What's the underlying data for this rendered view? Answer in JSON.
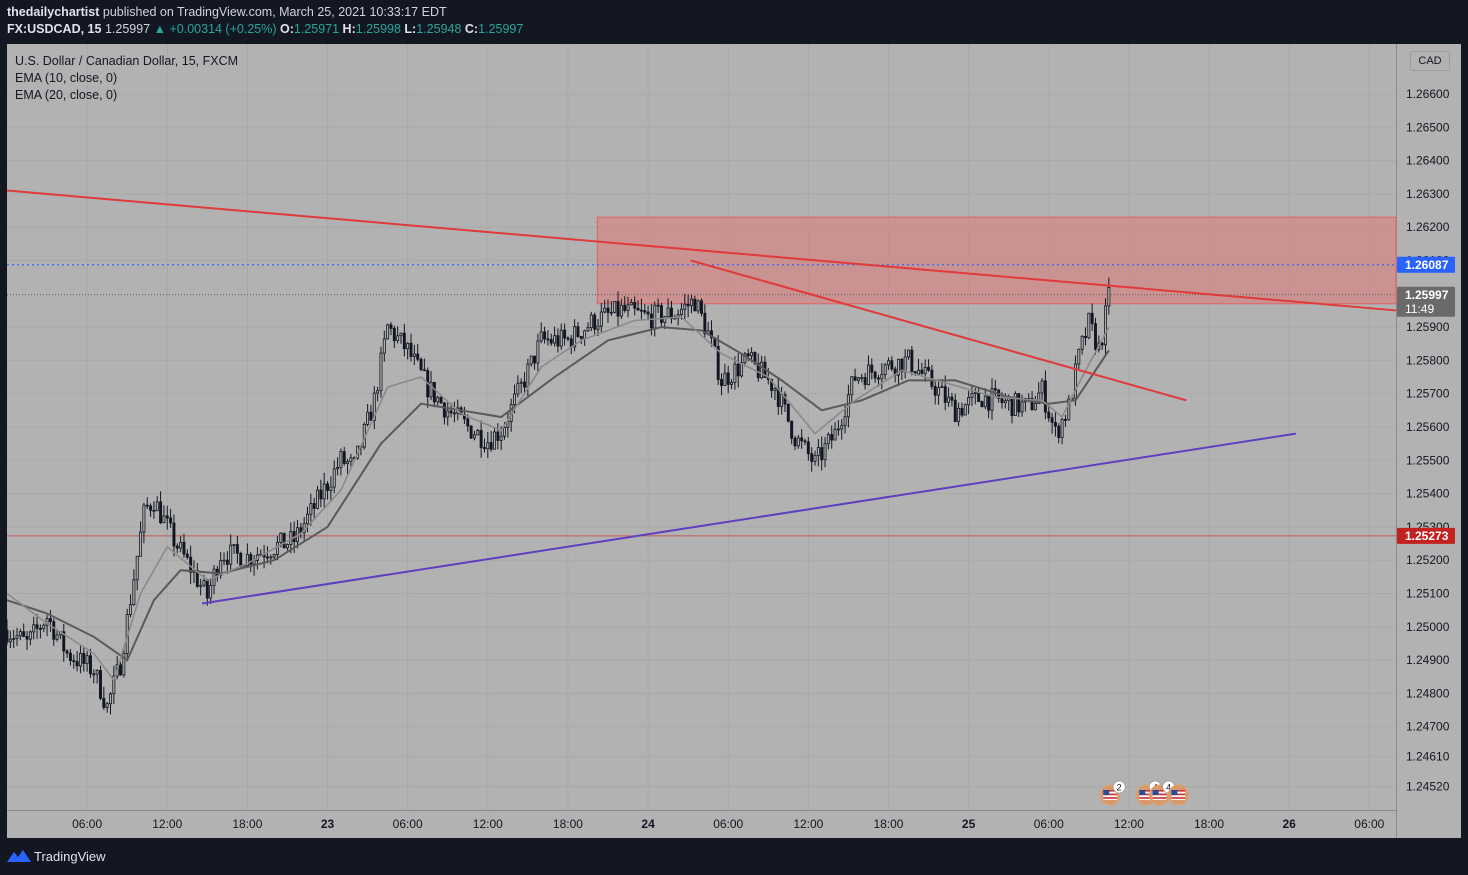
{
  "header": {
    "author": "thedailychartist",
    "published": "published on TradingView.com, March 25, 2021 10:33:17 EDT",
    "symbol_interval": "FX:USDCAD, 15",
    "last_price": "1.25997",
    "change": "▲ +0.00314 (+0.25%)",
    "open_label": "O:",
    "open": "1.25971",
    "high_label": "H:",
    "high": "1.25998",
    "low_label": "L:",
    "low": "1.25948",
    "close_label": "C:",
    "close": "1.25997"
  },
  "legend": {
    "title": "U.S. Dollar / Canadian Dollar, 15, FXCM",
    "ema10": "EMA (10, close, 0)",
    "ema20": "EMA (20, close, 0)"
  },
  "currency_button": "CAD",
  "footer": {
    "brand": "TradingView"
  },
  "colors": {
    "background": "#131722",
    "pane": "#b2b2b2",
    "candle": "#131722",
    "resistance_line": "#e03a3a",
    "support_line": "#5e3fbf",
    "zone": "#e07878",
    "ema10": "#8a8a8a",
    "ema20": "#5a5a5a",
    "price_tag_blue": "#2962ff",
    "price_tag_red": "#c42121",
    "price_tag_gray": "#6a6a6a"
  },
  "chart_data": {
    "type": "candlestick",
    "symbol": "USDCAD",
    "interval": "15",
    "y_axis": {
      "range": [
        1.2445,
        1.2675
      ],
      "ticks": [
        "1.26600",
        "1.26500",
        "1.26400",
        "1.26300",
        "1.26200",
        "1.26100",
        "1.25900",
        "1.25800",
        "1.25700",
        "1.25600",
        "1.25500",
        "1.25400",
        "1.25300",
        "1.25200",
        "1.25100",
        "1.25000",
        "1.24900",
        "1.24800",
        "1.24700",
        "1.24610",
        "1.24520"
      ]
    },
    "x_axis": {
      "ticks": [
        "06:00",
        "12:00",
        "18:00",
        "23",
        "06:00",
        "12:00",
        "18:00",
        "24",
        "06:00",
        "12:00",
        "18:00",
        "25",
        "06:00",
        "12:00",
        "18:00",
        "26",
        "06:00"
      ],
      "tick_hours": [
        6,
        12,
        18,
        24,
        30,
        36,
        42,
        48,
        54,
        60,
        66,
        72,
        78,
        84,
        90,
        96,
        102
      ],
      "range_hours": [
        0,
        104
      ]
    },
    "price_path": [
      [
        0.0,
        1.2499
      ],
      [
        1.5,
        1.2495
      ],
      [
        3.0,
        1.2503
      ],
      [
        4.5,
        1.2492
      ],
      [
        6.5,
        1.2487
      ],
      [
        7.5,
        1.2476
      ],
      [
        8.5,
        1.2489
      ],
      [
        9.5,
        1.2515
      ],
      [
        10.3,
        1.2535
      ],
      [
        11.0,
        1.2538
      ],
      [
        12.5,
        1.2526
      ],
      [
        14.0,
        1.2516
      ],
      [
        15.0,
        1.2509
      ],
      [
        16.0,
        1.2522
      ],
      [
        18.0,
        1.2521
      ],
      [
        20.0,
        1.2524
      ],
      [
        21.5,
        1.2526
      ],
      [
        23.0,
        1.2536
      ],
      [
        25.0,
        1.255
      ],
      [
        26.0,
        1.2548
      ],
      [
        27.5,
        1.2568
      ],
      [
        28.5,
        1.259
      ],
      [
        30.0,
        1.2583
      ],
      [
        31.5,
        1.2572
      ],
      [
        33.0,
        1.2565
      ],
      [
        34.5,
        1.256
      ],
      [
        36.0,
        1.2556
      ],
      [
        37.0,
        1.2559
      ],
      [
        38.5,
        1.2572
      ],
      [
        40.0,
        1.2586
      ],
      [
        42.0,
        1.2586
      ],
      [
        44.0,
        1.2592
      ],
      [
        46.0,
        1.2595
      ],
      [
        48.0,
        1.2593
      ],
      [
        50.0,
        1.2594
      ],
      [
        51.5,
        1.2598
      ],
      [
        52.5,
        1.2588
      ],
      [
        53.5,
        1.2574
      ],
      [
        55.5,
        1.258
      ],
      [
        57.5,
        1.2572
      ],
      [
        59.0,
        1.2557
      ],
      [
        60.5,
        1.2549
      ],
      [
        62.0,
        1.2558
      ],
      [
        63.5,
        1.2575
      ],
      [
        65.5,
        1.2578
      ],
      [
        67.5,
        1.258
      ],
      [
        69.5,
        1.2572
      ],
      [
        71.0,
        1.2565
      ],
      [
        73.0,
        1.2569
      ],
      [
        75.0,
        1.2567
      ],
      [
        76.5,
        1.2566
      ],
      [
        77.5,
        1.2571
      ],
      [
        78.5,
        1.2558
      ],
      [
        79.5,
        1.2566
      ],
      [
        80.3,
        1.2582
      ],
      [
        81.0,
        1.2591
      ],
      [
        81.8,
        1.2583
      ],
      [
        82.5,
        1.2599
      ]
    ],
    "ema10_path": [
      [
        0.0,
        1.251
      ],
      [
        3.0,
        1.2501
      ],
      [
        6.5,
        1.2492
      ],
      [
        8.0,
        1.2484
      ],
      [
        10.0,
        1.251
      ],
      [
        12.0,
        1.2524
      ],
      [
        15.0,
        1.2514
      ],
      [
        18.0,
        1.2519
      ],
      [
        22.0,
        1.2528
      ],
      [
        25.0,
        1.2541
      ],
      [
        28.5,
        1.2572
      ],
      [
        31.0,
        1.2575
      ],
      [
        34.0,
        1.2564
      ],
      [
        37.0,
        1.2559
      ],
      [
        40.0,
        1.2578
      ],
      [
        43.0,
        1.2586
      ],
      [
        47.0,
        1.2592
      ],
      [
        50.5,
        1.2593
      ],
      [
        53.5,
        1.2582
      ],
      [
        57.0,
        1.2575
      ],
      [
        60.5,
        1.2558
      ],
      [
        63.5,
        1.2568
      ],
      [
        67.0,
        1.2577
      ],
      [
        70.5,
        1.2573
      ],
      [
        74.0,
        1.2569
      ],
      [
        77.5,
        1.2568
      ],
      [
        79.0,
        1.2563
      ],
      [
        80.5,
        1.2575
      ],
      [
        82.5,
        1.259
      ]
    ],
    "ema20_path": [
      [
        0.0,
        1.2508
      ],
      [
        3.0,
        1.2504
      ],
      [
        6.5,
        1.2497
      ],
      [
        9.0,
        1.249
      ],
      [
        11.0,
        1.2508
      ],
      [
        13.0,
        1.2517
      ],
      [
        16.0,
        1.2516
      ],
      [
        20.0,
        1.252
      ],
      [
        24.0,
        1.253
      ],
      [
        28.0,
        1.2555
      ],
      [
        31.0,
        1.2567
      ],
      [
        34.0,
        1.2565
      ],
      [
        37.0,
        1.2563
      ],
      [
        41.0,
        1.2575
      ],
      [
        45.0,
        1.2586
      ],
      [
        49.0,
        1.259
      ],
      [
        52.0,
        1.2589
      ],
      [
        55.0,
        1.2582
      ],
      [
        58.0,
        1.2574
      ],
      [
        61.0,
        1.2565
      ],
      [
        64.0,
        1.2568
      ],
      [
        67.5,
        1.2574
      ],
      [
        71.0,
        1.2574
      ],
      [
        75.0,
        1.2569
      ],
      [
        78.0,
        1.2567
      ],
      [
        80.0,
        1.2568
      ],
      [
        82.5,
        1.2583
      ]
    ],
    "annotations": {
      "resistance_trendline": [
        [
          0.0,
          1.2631
        ],
        [
          104.0,
          1.2595
        ]
      ],
      "descending_trendline": [
        [
          51.2,
          1.261
        ],
        [
          88.3,
          1.2568
        ]
      ],
      "support_trendline": [
        [
          14.6,
          1.2507
        ],
        [
          96.5,
          1.2558
        ]
      ],
      "supply_zone": {
        "x": [
          44.2,
          104.0
        ],
        "y": [
          1.2597,
          1.2623
        ]
      },
      "horizontal_line": 1.25273
    },
    "price_tags": [
      {
        "label": "1.26087",
        "value": 1.26087,
        "style": "blue"
      },
      {
        "label": "1.25997",
        "value": 1.25997,
        "style": "gray",
        "countdown": "11:49"
      },
      {
        "label": "1.25273",
        "value": 1.25273,
        "style": "red"
      }
    ],
    "event_markers": [
      {
        "x_hours": 82.6,
        "count": "2"
      },
      {
        "x_hours": 85.3,
        "count": "4"
      },
      {
        "x_hours": 86.3,
        "count": "4"
      },
      {
        "x_hours": 87.7,
        "count": ""
      }
    ]
  }
}
